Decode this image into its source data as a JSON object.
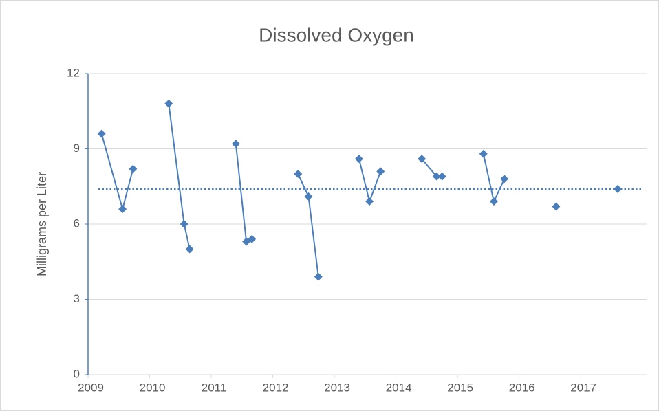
{
  "chart_data": {
    "type": "line",
    "title": "Dissolved Oxygen",
    "y_label": "Milligrams per Liter",
    "x": [
      2009.22,
      2009.56,
      2009.73,
      null,
      2010.31,
      2010.56,
      2010.65,
      null,
      2011.4,
      2011.57,
      2011.66,
      null,
      2012.41,
      2012.58,
      2012.74,
      null,
      2013.4,
      2013.57,
      2013.75,
      null,
      2014.42,
      2014.66,
      2014.75,
      null,
      2015.42,
      2015.59,
      2015.76,
      null,
      2016.6,
      null,
      2017.6
    ],
    "series": [
      {
        "color": "#4a7ebb",
        "values": [
          9.6,
          6.6,
          8.2,
          null,
          10.8,
          6.0,
          5.0,
          null,
          9.2,
          5.3,
          5.4,
          null,
          8.0,
          7.1,
          3.9,
          null,
          8.6,
          6.9,
          8.1,
          null,
          8.6,
          7.9,
          7.9,
          null,
          8.8,
          6.9,
          7.8,
          null,
          6.7,
          null,
          7.4
        ]
      }
    ],
    "reference_line": {
      "value": 7.4,
      "color": "#4a7ebb",
      "style": "dotted"
    },
    "xlim": [
      2009,
      2018.07
    ],
    "xticks": [
      2009,
      2010,
      2011,
      2012,
      2013,
      2014,
      2015,
      2016,
      2017
    ],
    "ylim": [
      0,
      12
    ],
    "yticks": [
      0,
      3,
      6,
      9,
      12
    ],
    "grid": true
  }
}
